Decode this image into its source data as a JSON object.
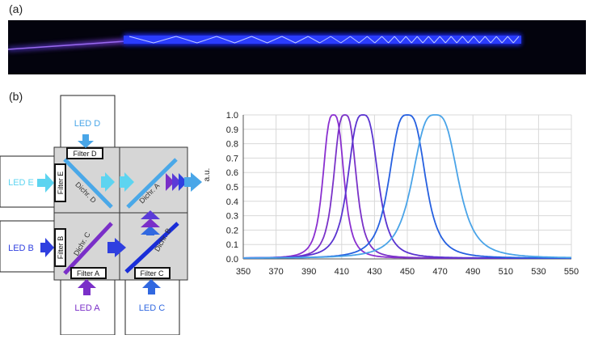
{
  "panels": {
    "a": "(a)",
    "b": "(b)"
  },
  "schematic": {
    "leds": {
      "d": "LED D",
      "e": "LED E",
      "b": "LED B",
      "a": "LED A",
      "c": "LED C"
    },
    "filters": {
      "d": "Filter D",
      "e": "Filter E",
      "b": "Filter B",
      "a": "Filter A",
      "c": "Filter C"
    },
    "dichroics": {
      "d": "Dichr. D",
      "a": "Dichr. A",
      "c": "Dichr. C",
      "b": "Dichr. B"
    },
    "colors": {
      "led_d": "#49a6e8",
      "led_e": "#5dd4f0",
      "led_b": "#2f3fe0",
      "led_a": "#7a2fc8",
      "led_c": "#3168e0",
      "cube": "#d6d6d6"
    }
  },
  "chart_data": {
    "type": "line",
    "xlabel": "",
    "ylabel": "a.u.",
    "xlim": [
      350,
      550
    ],
    "ylim": [
      0,
      1
    ],
    "x_ticks": [
      350,
      370,
      390,
      410,
      430,
      450,
      470,
      490,
      510,
      530,
      550
    ],
    "y_ticks": [
      0.0,
      0.1,
      0.2,
      0.3,
      0.4,
      0.5,
      0.6,
      0.7,
      0.8,
      0.9,
      1.0
    ],
    "grid": true,
    "series": [
      {
        "peak": 405,
        "fwhm": 14,
        "color": "#8a2fd0"
      },
      {
        "peak": 412,
        "fwhm": 15,
        "color": "#7a32c8"
      },
      {
        "peak": 423,
        "fwhm": 20,
        "color": "#5a34d0"
      },
      {
        "peak": 450,
        "fwhm": 24,
        "color": "#2660e0"
      },
      {
        "peak": 467,
        "fwhm": 30,
        "color": "#4aa4e8"
      }
    ]
  }
}
